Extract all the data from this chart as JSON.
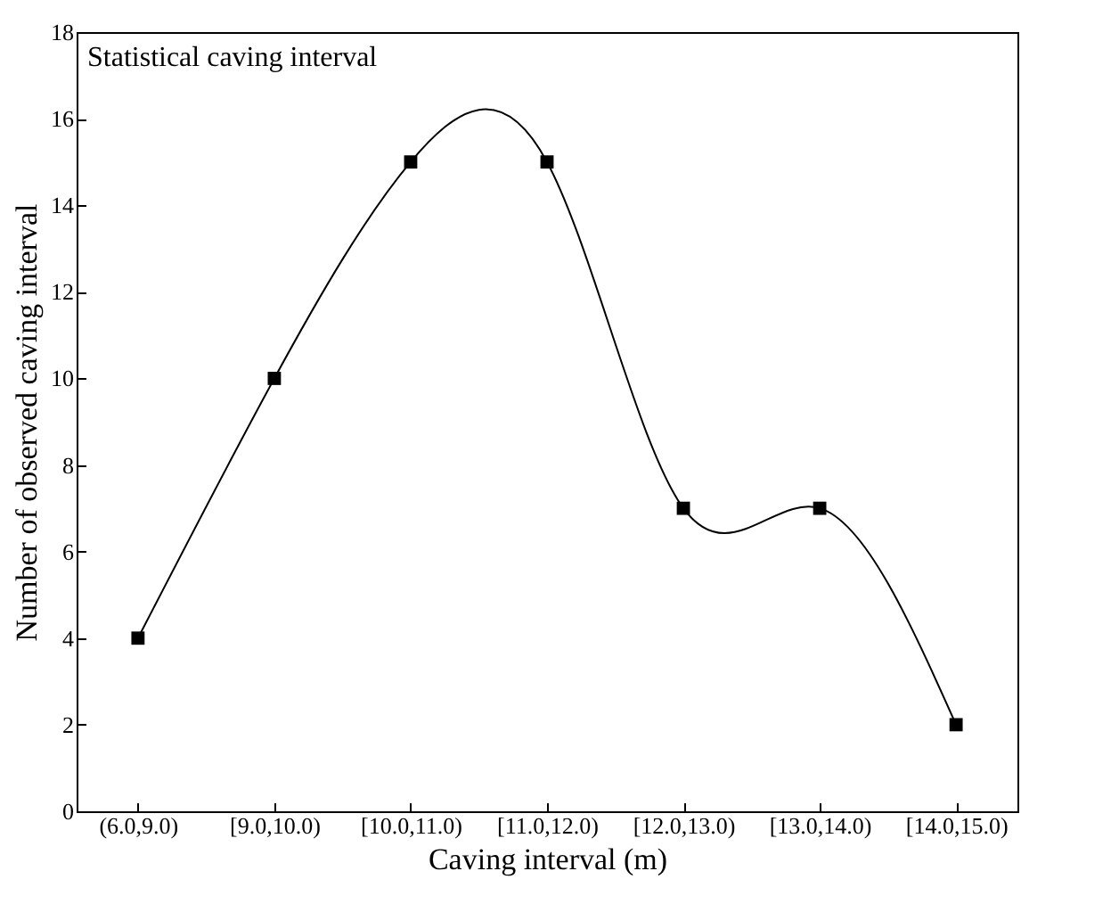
{
  "chart_data": {
    "type": "line",
    "xlabel": "Caving interval (m)",
    "ylabel": "Number of observed caving interval",
    "annotations": [
      "Statistical caving interval"
    ],
    "categories": [
      "(6.0,9.0)",
      "[9.0,10.0)",
      "[10.0,11.0)",
      "[11.0,12.0)",
      "[12.0,13.0)",
      "[13.0,14.0)",
      "[14.0,15.0)"
    ],
    "values": [
      4,
      10,
      15,
      15,
      7,
      7,
      2
    ],
    "color": "#000000",
    "marker": "square",
    "ylim": [
      0,
      18
    ],
    "yticks": [
      0,
      2,
      4,
      6,
      8,
      10,
      12,
      14,
      16,
      18
    ],
    "grid": false
  }
}
